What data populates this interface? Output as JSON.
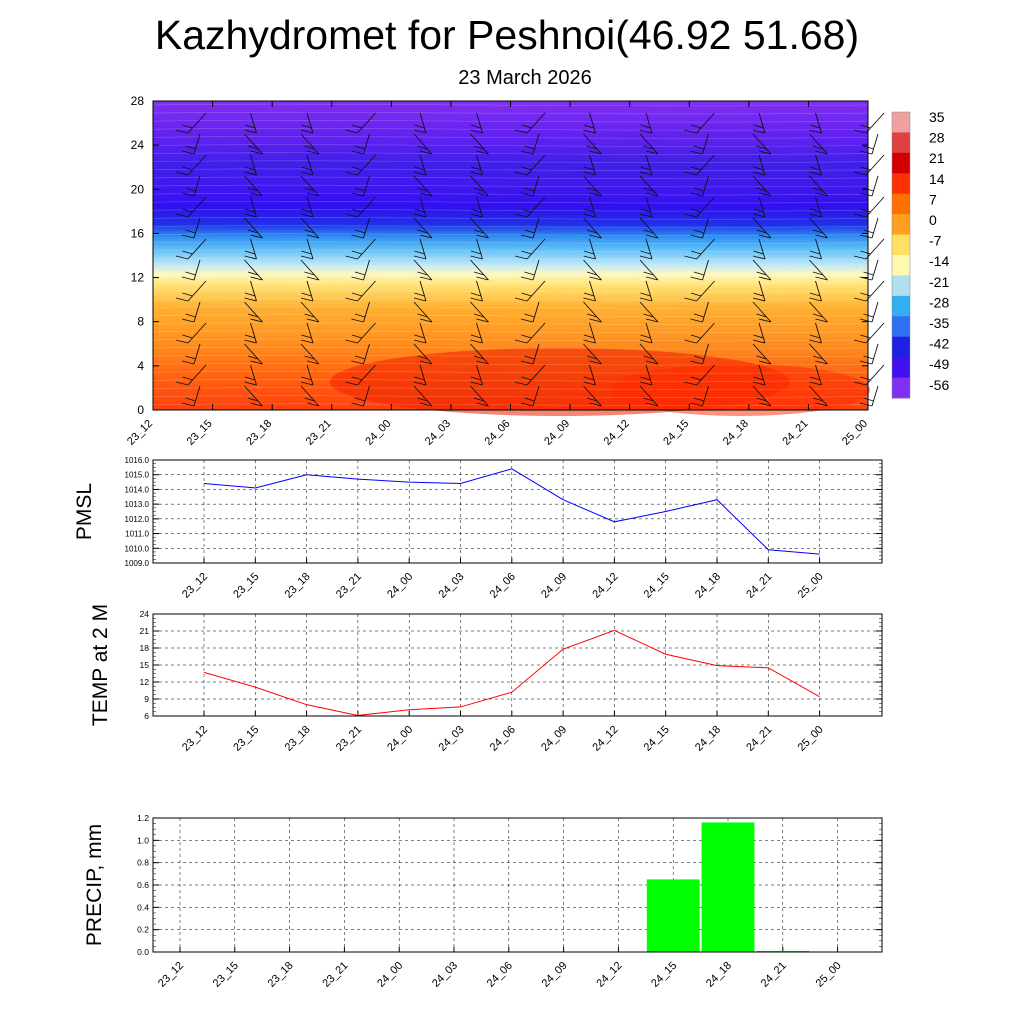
{
  "title": "Kazhydromet for Peshnoi(46.92 51.68)",
  "subtitle": "23 March 2026",
  "time_labels": [
    "23_12",
    "23_15",
    "23_18",
    "23_21",
    "24_00",
    "24_03",
    "24_06",
    "24_09",
    "24_12",
    "24_15",
    "24_18",
    "24_21",
    "25_00"
  ],
  "colors": {
    "pmsl_line": "#0000ff",
    "temp_line": "#ff0000",
    "precip_bar": "#00ff00",
    "grid": "#000000"
  },
  "chart_data": [
    {
      "id": "cross_section",
      "type": "heatmap",
      "description_var": "temperature with wind barbs",
      "ylim": [
        0,
        28
      ],
      "yticks": [
        "0",
        "4",
        "8",
        "12",
        "16",
        "20",
        "24",
        "28"
      ],
      "colorbar": {
        "labels": [
          "35",
          "28",
          "21",
          "14",
          "7",
          "0",
          "-7",
          "-14",
          "-21",
          "-28",
          "-35",
          "-42",
          "-49",
          "-56"
        ],
        "colors": [
          "#f0a0a0",
          "#e04040",
          "#d00000",
          "#ff3000",
          "#ff7000",
          "#ffa020",
          "#ffe060",
          "#fff8b0",
          "#b0e0f0",
          "#30b0f0",
          "#3070f0",
          "#2020e0",
          "#4010f0",
          "#8030f0"
        ]
      }
    },
    {
      "id": "pmsl",
      "type": "line",
      "ylabel": "PMSL",
      "ylim": [
        1009.0,
        1016.0
      ],
      "yticks": [
        "1009.0",
        "1010.0",
        "1011.0",
        "1012.0",
        "1013.0",
        "1014.0",
        "1015.0",
        "1016.0"
      ],
      "values": [
        1014.4,
        1014.1,
        1015.0,
        1014.7,
        1014.5,
        1014.4,
        1015.4,
        1013.3,
        1011.8,
        1012.5,
        1013.3,
        1009.9,
        1009.6
      ]
    },
    {
      "id": "temp2m",
      "type": "line",
      "ylabel": "TEMP at 2 M",
      "ylim": [
        6,
        24
      ],
      "yticks": [
        "6",
        "9",
        "12",
        "15",
        "18",
        "21",
        "24"
      ],
      "values": [
        13.7,
        11.1,
        8.0,
        6.1,
        7.1,
        7.6,
        10.2,
        17.8,
        21.1,
        16.9,
        14.9,
        14.5,
        9.4
      ]
    },
    {
      "id": "precip",
      "type": "bar",
      "ylabel": "PRECIP, mm",
      "ylim": [
        0.0,
        1.2
      ],
      "yticks": [
        "0.0",
        "0.2",
        "0.4",
        "0.6",
        "0.8",
        "1.0",
        "1.2"
      ],
      "values": [
        0,
        0,
        0,
        0,
        0,
        0,
        0,
        0,
        0,
        0.65,
        1.16,
        0.01,
        0
      ]
    }
  ]
}
